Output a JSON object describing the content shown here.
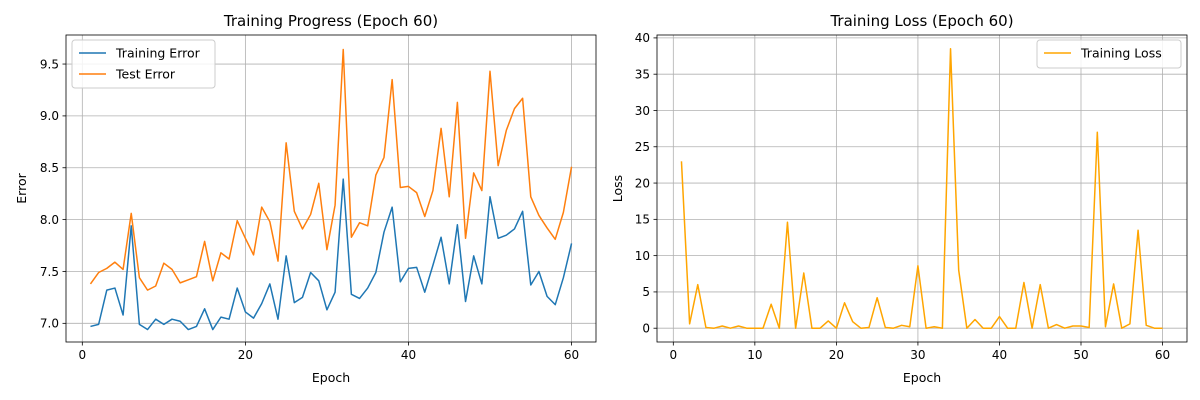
{
  "chart_data": [
    {
      "type": "line",
      "title": "Training Progress (Epoch 60)",
      "xlabel": "Epoch",
      "ylabel": "Error",
      "xlim": [
        -2,
        63
      ],
      "ylim": [
        6.82,
        9.78
      ],
      "xticks": [
        0,
        20,
        40,
        60
      ],
      "yticks": [
        7.0,
        7.5,
        8.0,
        8.5,
        9.0,
        9.5
      ],
      "ytick_labels": [
        "7.0",
        "7.5",
        "8.0",
        "8.5",
        "9.0",
        "9.5"
      ],
      "grid": true,
      "legend": "top-left",
      "x": [
        1,
        2,
        3,
        4,
        5,
        6,
        7,
        8,
        9,
        10,
        11,
        12,
        13,
        14,
        15,
        16,
        17,
        18,
        19,
        20,
        21,
        22,
        23,
        24,
        25,
        26,
        27,
        28,
        29,
        30,
        31,
        32,
        33,
        34,
        35,
        36,
        37,
        38,
        39,
        40,
        41,
        42,
        43,
        44,
        45,
        46,
        47,
        48,
        49,
        50,
        51,
        52,
        53,
        54,
        55,
        56,
        57,
        58,
        59,
        60
      ],
      "series": [
        {
          "name": "Training Error",
          "color": "#1f77b4",
          "values": [
            6.97,
            6.99,
            7.32,
            7.34,
            7.08,
            7.94,
            6.99,
            6.94,
            7.04,
            6.99,
            7.04,
            7.02,
            6.94,
            6.97,
            7.14,
            6.94,
            7.06,
            7.04,
            7.34,
            7.11,
            7.05,
            7.19,
            7.38,
            7.04,
            7.65,
            7.2,
            7.25,
            7.49,
            7.41,
            7.13,
            7.3,
            8.39,
            7.28,
            7.24,
            7.34,
            7.49,
            7.88,
            8.12,
            7.4,
            7.53,
            7.54,
            7.3,
            7.56,
            7.83,
            7.38,
            7.95,
            7.21,
            7.65,
            7.38,
            8.22,
            7.82,
            7.85,
            7.91,
            8.08,
            7.37,
            7.5,
            7.26,
            7.18,
            7.44,
            7.77
          ]
        },
        {
          "name": "Test Error",
          "color": "#ff7f0e",
          "values": [
            7.38,
            7.49,
            7.53,
            7.59,
            7.52,
            8.06,
            7.44,
            7.32,
            7.36,
            7.58,
            7.52,
            7.39,
            7.42,
            7.45,
            7.79,
            7.41,
            7.68,
            7.62,
            7.99,
            7.82,
            7.66,
            8.12,
            7.98,
            7.6,
            8.74,
            8.08,
            7.91,
            8.05,
            8.35,
            7.71,
            8.14,
            9.64,
            7.83,
            7.97,
            7.94,
            8.43,
            8.6,
            9.35,
            8.31,
            8.32,
            8.26,
            8.03,
            8.28,
            8.88,
            8.22,
            9.13,
            7.82,
            8.45,
            8.28,
            9.43,
            8.52,
            8.86,
            9.07,
            9.17,
            8.22,
            8.04,
            7.92,
            7.81,
            8.07,
            8.51
          ]
        }
      ]
    },
    {
      "type": "line",
      "title": "Training Loss (Epoch 60)",
      "xlabel": "Epoch",
      "ylabel": "Loss",
      "xlim": [
        -2,
        63
      ],
      "ylim": [
        -1.9,
        40.4
      ],
      "xticks": [
        0,
        10,
        20,
        30,
        40,
        50,
        60
      ],
      "yticks": [
        0,
        5,
        10,
        15,
        20,
        25,
        30,
        35,
        40
      ],
      "ytick_labels": [
        "0",
        "5",
        "10",
        "15",
        "20",
        "25",
        "30",
        "35",
        "40"
      ],
      "grid": true,
      "legend": "top-right",
      "x": [
        1,
        2,
        3,
        4,
        5,
        6,
        7,
        8,
        9,
        10,
        11,
        12,
        13,
        14,
        15,
        16,
        17,
        18,
        19,
        20,
        21,
        22,
        23,
        24,
        25,
        26,
        27,
        28,
        29,
        30,
        31,
        32,
        33,
        34,
        35,
        36,
        37,
        38,
        39,
        40,
        41,
        42,
        43,
        44,
        45,
        46,
        47,
        48,
        49,
        50,
        51,
        52,
        53,
        54,
        55,
        56,
        57,
        58,
        59,
        60
      ],
      "series": [
        {
          "name": "Training Loss",
          "color": "#ffa500",
          "values": [
            23.0,
            0.6,
            6.0,
            0.1,
            0.0,
            0.3,
            0.0,
            0.3,
            0.0,
            0.0,
            0.0,
            3.3,
            0.0,
            14.6,
            0.0,
            7.6,
            0.0,
            0.0,
            1.0,
            0.0,
            3.5,
            0.9,
            0.0,
            0.1,
            4.2,
            0.1,
            0.0,
            0.4,
            0.2,
            8.6,
            0.0,
            0.2,
            0.0,
            38.5,
            8.0,
            0.0,
            1.2,
            0.0,
            0.0,
            1.6,
            0.0,
            0.0,
            6.3,
            0.0,
            6.0,
            0.0,
            0.5,
            0.0,
            0.3,
            0.3,
            0.1,
            27.0,
            0.2,
            6.1,
            0.0,
            0.6,
            13.5,
            0.4,
            0.0,
            0.0
          ]
        }
      ]
    }
  ]
}
